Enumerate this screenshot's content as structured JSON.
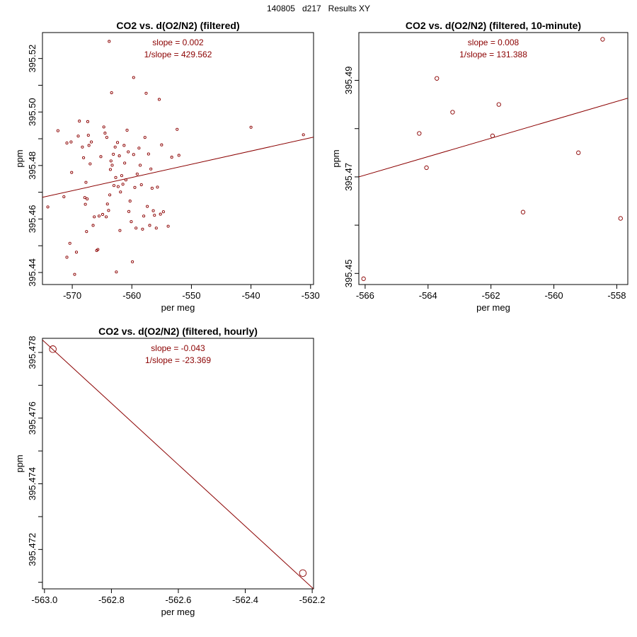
{
  "page_title": "140805   d217   Results XY",
  "colors": {
    "series": "#8b0000",
    "frame": "#000000"
  },
  "chart_data": [
    {
      "type": "scatter",
      "title": "CO2 vs. d(O2/N2) (filtered)",
      "xlabel": "per meg",
      "ylabel": "ppm",
      "xlim": [
        -575.0,
        -529.5
      ],
      "ylim": [
        395.4355,
        395.5297
      ],
      "xticks": [
        -570,
        -560,
        -550,
        -540,
        -530
      ],
      "xtick_labels": [
        "-570",
        "-560",
        "-550",
        "-540",
        "-530"
      ],
      "yticks": [
        395.44,
        395.46,
        395.48,
        395.5,
        395.52
      ],
      "ytick_labels": [
        "395.44",
        "395.46",
        "395.48",
        "395.50",
        "395.52"
      ],
      "slope_text": "slope = 0.002",
      "inv_slope_text": "1/slope = 429.562",
      "fit_line": {
        "x": [
          -575.0,
          -529.5
        ],
        "y": [
          395.4681,
          395.4906
        ]
      },
      "marker_size": "small",
      "points": [
        [
          -574.1,
          395.4645
        ],
        [
          -572.4,
          395.493
        ],
        [
          -571.4,
          395.4683
        ],
        [
          -570.9,
          395.4884
        ],
        [
          -570.4,
          395.4509
        ],
        [
          -570.2,
          395.4888
        ],
        [
          -570.1,
          395.4774
        ],
        [
          -570.9,
          395.4457
        ],
        [
          -569.6,
          395.4393
        ],
        [
          -569.3,
          395.4476
        ],
        [
          -569.0,
          395.491
        ],
        [
          -568.8,
          395.4966
        ],
        [
          -568.3,
          395.4869
        ],
        [
          -568.1,
          395.4829
        ],
        [
          -567.9,
          395.468
        ],
        [
          -567.8,
          395.4655
        ],
        [
          -567.7,
          395.4737
        ],
        [
          -567.6,
          395.4553
        ],
        [
          -567.5,
          395.4675
        ],
        [
          -567.4,
          395.4964
        ],
        [
          -567.3,
          395.4913
        ],
        [
          -567.2,
          395.4875
        ],
        [
          -567.0,
          395.4806
        ],
        [
          -566.8,
          395.4888
        ],
        [
          -566.5,
          395.4576
        ],
        [
          -566.3,
          395.4608
        ],
        [
          -565.9,
          395.4482
        ],
        [
          -565.7,
          395.4486
        ],
        [
          -565.5,
          395.4611
        ],
        [
          -565.2,
          395.4833
        ],
        [
          -564.9,
          395.4617
        ],
        [
          -564.7,
          395.4944
        ],
        [
          -564.5,
          395.4921
        ],
        [
          -564.3,
          395.4608
        ],
        [
          -564.2,
          395.4905
        ],
        [
          -564.1,
          395.4656
        ],
        [
          -563.9,
          395.4632
        ],
        [
          -563.7,
          395.469
        ],
        [
          -563.6,
          395.4785
        ],
        [
          -563.5,
          395.4817
        ],
        [
          -563.3,
          395.4801
        ],
        [
          -563.1,
          395.4842
        ],
        [
          -563.0,
          395.4725
        ],
        [
          -562.8,
          395.4869
        ],
        [
          -562.7,
          395.4755
        ],
        [
          -562.6,
          395.4402
        ],
        [
          -562.4,
          395.4886
        ],
        [
          -562.3,
          395.4721
        ],
        [
          -562.1,
          395.4836
        ],
        [
          -562.0,
          395.4557
        ],
        [
          -561.9,
          395.4701
        ],
        [
          -561.7,
          395.4762
        ],
        [
          -561.5,
          395.473
        ],
        [
          -561.3,
          395.4875
        ],
        [
          -561.2,
          395.4809
        ],
        [
          -561.0,
          395.4746
        ],
        [
          -560.8,
          395.4932
        ],
        [
          -560.6,
          395.4851
        ],
        [
          -560.5,
          395.4628
        ],
        [
          -560.3,
          395.4667
        ],
        [
          -560.1,
          395.459
        ],
        [
          -559.9,
          395.444
        ],
        [
          -559.7,
          395.4841
        ],
        [
          -559.5,
          395.4718
        ],
        [
          -559.3,
          395.4566
        ],
        [
          -559.1,
          395.4768
        ],
        [
          -558.8,
          395.4865
        ],
        [
          -558.6,
          395.4801
        ],
        [
          -558.4,
          395.4728
        ],
        [
          -558.2,
          395.4562
        ],
        [
          -558.0,
          395.4611
        ],
        [
          -557.8,
          395.4905
        ],
        [
          -557.6,
          395.507
        ],
        [
          -557.4,
          395.4647
        ],
        [
          -557.2,
          395.4843
        ],
        [
          -557.0,
          395.4576
        ],
        [
          -556.8,
          395.4787
        ],
        [
          -556.6,
          395.4715
        ],
        [
          -556.4,
          395.4631
        ],
        [
          -556.2,
          395.4614
        ],
        [
          -555.9,
          395.4566
        ],
        [
          -555.7,
          395.4719
        ],
        [
          -555.4,
          395.5047
        ],
        [
          -555.2,
          395.4618
        ],
        [
          -555.0,
          395.4877
        ],
        [
          -554.7,
          395.4627
        ],
        [
          -553.9,
          395.4573
        ],
        [
          -553.3,
          395.4831
        ],
        [
          -552.4,
          395.4935
        ],
        [
          -552.1,
          395.4838
        ],
        [
          -563.8,
          395.5264
        ],
        [
          -559.7,
          395.5129
        ],
        [
          -563.4,
          395.5072
        ],
        [
          -540.0,
          395.4943
        ],
        [
          -531.2,
          395.4915
        ]
      ]
    },
    {
      "type": "scatter",
      "title": "CO2 vs. d(O2/N2) (filtered, 10-minute)",
      "xlabel": "per meg",
      "ylabel": "ppm",
      "xlim": [
        -566.2,
        -557.65
      ],
      "ylim": [
        395.4477,
        395.4999
      ],
      "xticks": [
        -566,
        -564,
        -562,
        -560,
        -558
      ],
      "xtick_labels": [
        "-566",
        "-564",
        "-562",
        "-560",
        "-558"
      ],
      "yticks": [
        395.45,
        395.47,
        395.49
      ],
      "ytick_labels": [
        "395.45",
        "395.47",
        "395.49"
      ],
      "slope_text": "slope = 0.008",
      "inv_slope_text": "1/slope = 131.388",
      "fit_line": {
        "x": [
          -566.2,
          -557.65
        ],
        "y": [
          395.47,
          395.4863
        ]
      },
      "marker_size": "medium",
      "points": [
        [
          -566.05,
          395.4489
        ],
        [
          -564.28,
          395.479
        ],
        [
          -564.05,
          395.4719
        ],
        [
          -563.72,
          395.4904
        ],
        [
          -563.22,
          395.4834
        ],
        [
          -561.95,
          395.4785
        ],
        [
          -561.75,
          395.485
        ],
        [
          -560.98,
          395.4627
        ],
        [
          -559.22,
          395.475
        ],
        [
          -558.45,
          395.4985
        ],
        [
          -557.88,
          395.4614
        ]
      ]
    },
    {
      "type": "scatter",
      "title": "CO2 vs. d(O2/N2) (filtered, hourly)",
      "xlabel": "per meg",
      "ylabel": "ppm",
      "xlim": [
        -563.006,
        -562.196
      ],
      "ylim": [
        395.4708,
        395.47843
      ],
      "xticks": [
        -563.0,
        -562.8,
        -562.6,
        -562.4,
        -562.2
      ],
      "xtick_labels": [
        "-563.0",
        "-562.8",
        "-562.6",
        "-562.4",
        "-562.2"
      ],
      "yticks": [
        395.472,
        395.474,
        395.476,
        395.478
      ],
      "ytick_labels": [
        "395.472",
        "395.474",
        "395.476",
        "395.478"
      ],
      "slope_text": "slope = -0.043",
      "inv_slope_text": "1/slope = -23.369",
      "fit_line": {
        "x": [
          -563.006,
          -562.196
        ],
        "y": [
          395.47838,
          395.4708
        ]
      },
      "marker_size": "large",
      "points": [
        [
          -562.975,
          395.4781
        ],
        [
          -562.228,
          395.47128
        ]
      ]
    }
  ]
}
